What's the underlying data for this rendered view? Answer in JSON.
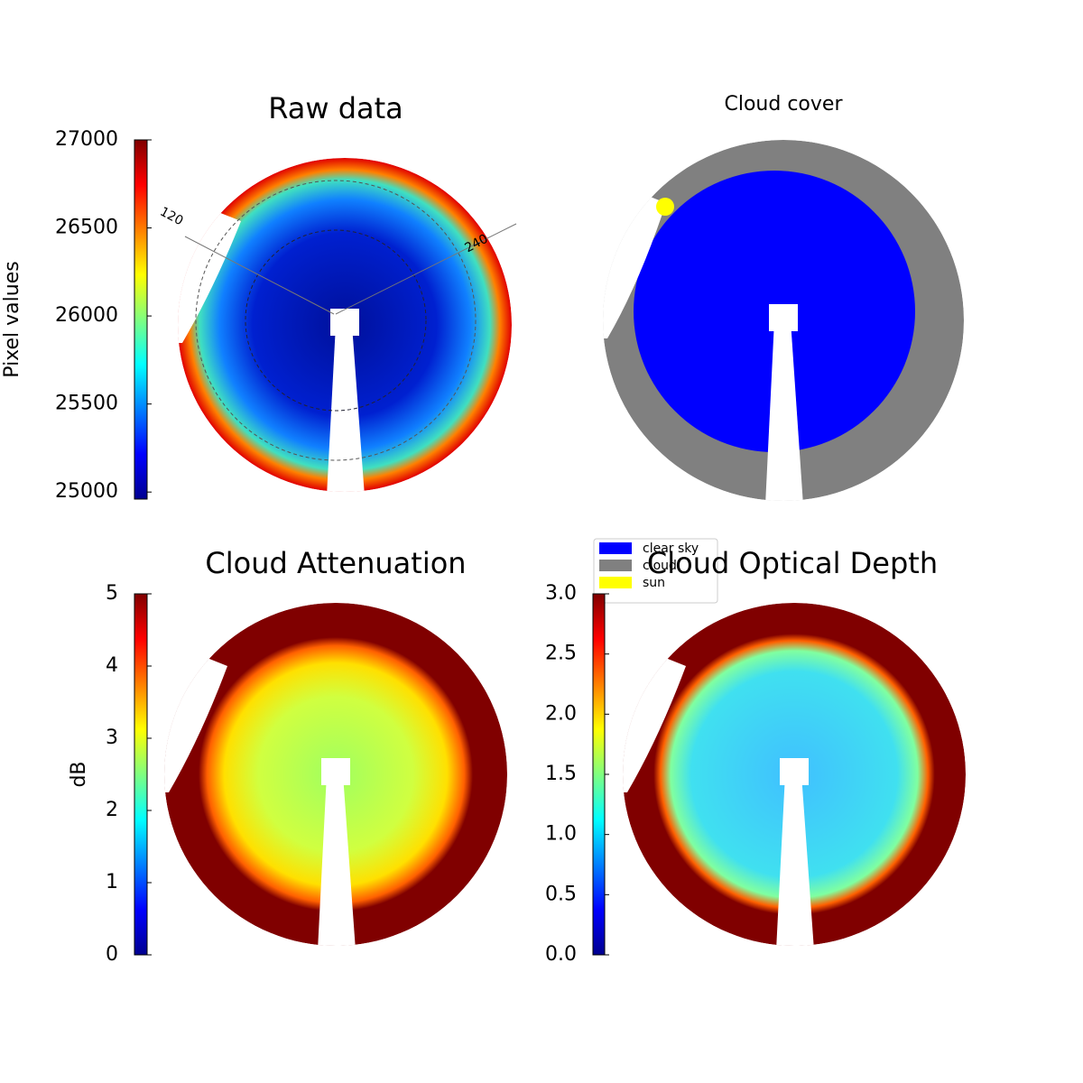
{
  "chart_data": [
    {
      "type": "image",
      "title": "Raw data",
      "colorbar_label": "Pixel values",
      "colormap": "jet",
      "ylim": [
        24960,
        27000
      ],
      "yticks": [
        25000,
        25500,
        26000,
        26500,
        27000
      ],
      "annotations": [
        "120",
        "240"
      ]
    },
    {
      "type": "classmap",
      "title": "Cloud cover",
      "legend_items": [
        {
          "name": "clear sky",
          "color": "#0000ff"
        },
        {
          "name": "cloud",
          "color": "#808080"
        },
        {
          "name": "sun",
          "color": "#ffff00"
        }
      ]
    },
    {
      "type": "image",
      "title": "Cloud Attenuation",
      "colorbar_label": "dB",
      "colormap": "jet",
      "ylim": [
        0,
        5
      ],
      "yticks": [
        0,
        1,
        2,
        3,
        4,
        5
      ]
    },
    {
      "type": "image",
      "title": "Cloud Optical Depth",
      "colormap": "jet",
      "ylim": [
        0,
        3
      ],
      "yticks": [
        {
          "value": 0,
          "label": "0.0"
        },
        0.5,
        {
          "value": 1,
          "label": "1.0"
        },
        1.5,
        {
          "value": 2,
          "label": "2.0"
        },
        2.5,
        {
          "value": 3,
          "label": "3.0"
        }
      ]
    }
  ]
}
